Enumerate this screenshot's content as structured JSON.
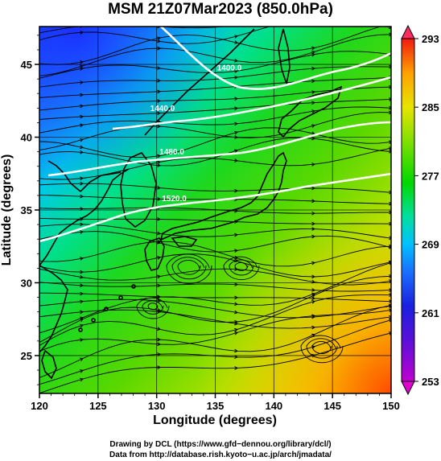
{
  "title": "MSM 21Z07Mar2023 (850.0hPa)",
  "map": {
    "xlabel": "Longitude (degrees)",
    "ylabel": "Latitude  (degrees)",
    "xlim": [
      120,
      150
    ],
    "ylim": [
      22.4,
      47.6
    ],
    "xticks": [
      "120",
      "125",
      "130",
      "135",
      "140",
      "145",
      "150"
    ],
    "yticks": [
      "25",
      "30",
      "35",
      "40",
      "45"
    ],
    "variable": "temperature (K) with streamlines and geopotential height contours",
    "contour_labels": [
      {
        "text": "1400.0",
        "lon": 136.2,
        "lat": 44.6
      },
      {
        "text": "1440.0",
        "lon": 130.5,
        "lat": 41.8
      },
      {
        "text": "1480.0",
        "lon": 131.3,
        "lat": 38.8
      },
      {
        "text": "1520.0",
        "lon": 131.5,
        "lat": 35.6
      }
    ]
  },
  "colorbar": {
    "ticks": [
      "293",
      "285",
      "277",
      "269",
      "261",
      "253"
    ],
    "range": [
      253,
      293
    ],
    "colors": [
      "#ff2a7e",
      "#b000d0",
      "#2a1fd6",
      "#1a64ff",
      "#00b8ff",
      "#00e39a",
      "#00d600",
      "#7fe000",
      "#e8e400",
      "#ffb000",
      "#ff5a00",
      "#f01010"
    ]
  },
  "credits": {
    "line1": "Drawing by DCL (https://www.gfd−dennou.org/library/dcl/)",
    "line2": "Data from http://database.rish.kyoto−u.ac.jp/arch/jmadata/"
  }
}
